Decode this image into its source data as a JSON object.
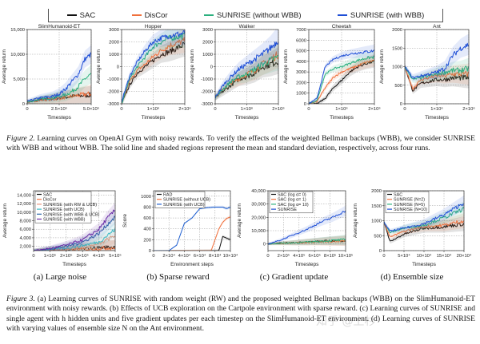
{
  "figure2": {
    "legend": [
      {
        "label": "SAC",
        "color": "#111111"
      },
      {
        "label": "DisCor",
        "color": "#f0703c"
      },
      {
        "label": "SUNRISE (without WBB)",
        "color": "#2bb07e"
      },
      {
        "label": "SUNRISE (with WBB)",
        "color": "#1f4fd6"
      }
    ],
    "caption_label": "Figure 2.",
    "caption_text": " Learning curves on OpenAI Gym with noisy rewards. To verify the effects of the weighted Bellman backups (WBB), we consider SUNRISE with WBB and without WBB. The solid line and shaded regions represent the mean and standard deviation, respectively, across four runs."
  },
  "figure3": {
    "subcaptions": [
      "(a) Large noise",
      "(b) Sparse reward",
      "(c) Gradient update",
      "(d) Ensemble size"
    ],
    "caption_label": "Figure 3.",
    "caption_text": " (a) Learning curves of SUNRISE with random weight (RW) and the proposed weighted Bellman backups (WBB) on the SlimHumanoid-ET environment with noisy rewards. (b) Effects of UCB exploration on the Cartpole environment with sparse reward. (c) Learning curves of SUNRISE and single agent with h hidden units and five gradient updates per each timestep on the SlimHumanoid-ET environment. (d) Learning curves of SUNRISE with varying values of ensemble size N on the Ant environment."
  },
  "watermark": "知乎 @上杉",
  "chart_data": [
    {
      "type": "line",
      "title": "SlimHumanoid-ET",
      "xlabel": "Timesteps",
      "ylabel": "Average return",
      "xlim": [
        0,
        500000
      ],
      "ylim": [
        0,
        15000
      ],
      "xticks": [
        0,
        250000,
        500000
      ],
      "xticklabels": [
        "0",
        "2.5×10⁵",
        "5.0×10⁵"
      ],
      "yticks": [
        0,
        5000,
        10000,
        15000
      ],
      "yticklabels": [
        "0",
        "5,000",
        "10,000",
        "15,000"
      ],
      "grid": true,
      "x": [
        0,
        100000,
        200000,
        250000,
        300000,
        350000,
        400000,
        450000,
        500000
      ],
      "series": [
        {
          "name": "SAC",
          "color": "#111111",
          "values": [
            300,
            800,
            1000,
            1200,
            1300,
            1500,
            1600,
            1700,
            1800
          ]
        },
        {
          "name": "DisCor",
          "color": "#f0703c",
          "values": [
            300,
            700,
            900,
            1100,
            1300,
            1500,
            1700,
            1900,
            2000
          ]
        },
        {
          "name": "SUNRISE (without WBB)",
          "color": "#2bb07e",
          "values": [
            300,
            900,
            1200,
            1500,
            1800,
            2500,
            3500,
            5000,
            6000
          ]
        },
        {
          "name": "SUNRISE (with WBB)",
          "color": "#1f4fd6",
          "values": [
            500,
            1200,
            1500,
            2000,
            3000,
            4500,
            6000,
            9000,
            10000
          ]
        }
      ]
    },
    {
      "type": "line",
      "title": "Hopper",
      "xlabel": "Timesteps",
      "ylabel": "Average return",
      "xlim": [
        0,
        2000000
      ],
      "ylim": [
        -3000,
        3000
      ],
      "xticks": [
        0,
        1000000,
        2000000
      ],
      "xticklabels": [
        "0",
        "1×10⁶",
        "2×10⁶"
      ],
      "yticks": [
        -3000,
        -2000,
        -1000,
        0,
        1000,
        2000,
        3000
      ],
      "yticklabels": [
        "-3000",
        "-2000",
        "-1000",
        "0",
        "1000",
        "2000",
        "3000"
      ],
      "grid": true,
      "x": [
        0,
        250000,
        500000,
        750000,
        1000000,
        1250000,
        1500000,
        1750000,
        2000000
      ],
      "series": [
        {
          "name": "SAC",
          "color": "#111111",
          "values": [
            -3000,
            -1500,
            -500,
            0,
            500,
            1000,
            1200,
            1500,
            1800
          ]
        },
        {
          "name": "DisCor",
          "color": "#f0703c",
          "values": [
            -3000,
            -1200,
            -300,
            200,
            800,
            1300,
            1700,
            1900,
            2100
          ]
        },
        {
          "name": "SUNRISE (without WBB)",
          "color": "#2bb07e",
          "values": [
            -3000,
            -1000,
            0,
            800,
            1600,
            2000,
            2300,
            2400,
            2500
          ]
        },
        {
          "name": "SUNRISE (with WBB)",
          "color": "#1f4fd6",
          "values": [
            -2800,
            -800,
            400,
            1300,
            2000,
            2300,
            2500,
            2600,
            2700
          ]
        }
      ]
    },
    {
      "type": "line",
      "title": "Walker",
      "xlabel": "Timesteps",
      "ylabel": "Average return",
      "xlim": [
        0,
        2000000
      ],
      "ylim": [
        -3000,
        3000
      ],
      "xticks": [
        0,
        1000000,
        2000000
      ],
      "xticklabels": [
        "0",
        "1×10⁶",
        "2×10⁶"
      ],
      "yticks": [
        -3000,
        -2000,
        -1000,
        0,
        1000,
        2000,
        3000
      ],
      "yticklabels": [
        "-3000",
        "-2000",
        "-1000",
        "0",
        "1000",
        "2000",
        "3000"
      ],
      "grid": true,
      "x": [
        0,
        250000,
        500000,
        750000,
        1000000,
        1250000,
        1500000,
        1750000,
        2000000
      ],
      "series": [
        {
          "name": "SAC",
          "color": "#111111",
          "values": [
            -2500,
            -2000,
            -1500,
            -1000,
            -800,
            -500,
            0,
            200,
            500
          ]
        },
        {
          "name": "DisCor",
          "color": "#f0703c",
          "values": [
            -2500,
            -1800,
            -1300,
            -1000,
            -600,
            -300,
            200,
            600,
            1000
          ]
        },
        {
          "name": "SUNRISE (without WBB)",
          "color": "#2bb07e",
          "values": [
            -2500,
            -1800,
            -1200,
            -800,
            -600,
            -200,
            200,
            500,
            800
          ]
        },
        {
          "name": "SUNRISE (with WBB)",
          "color": "#1f4fd6",
          "values": [
            -2500,
            -1500,
            -800,
            -200,
            200,
            600,
            1000,
            1500,
            2200
          ]
        }
      ]
    },
    {
      "type": "line",
      "title": "Cheetah",
      "xlabel": "Timesteps",
      "ylabel": "Average return",
      "xlim": [
        0,
        2000000
      ],
      "ylim": [
        0,
        7000
      ],
      "xticks": [
        0,
        1000000,
        2000000
      ],
      "xticklabels": [
        "0",
        "1×10⁶",
        "2×10⁶"
      ],
      "yticks": [
        0,
        1000,
        2000,
        3000,
        4000,
        5000,
        6000,
        7000
      ],
      "yticklabels": [
        "0",
        "1000",
        "2000",
        "3000",
        "4000",
        "5000",
        "6000",
        "7000"
      ],
      "grid": true,
      "x": [
        0,
        250000,
        500000,
        750000,
        1000000,
        1250000,
        1500000,
        1750000,
        2000000
      ],
      "series": [
        {
          "name": "SAC",
          "color": "#111111",
          "values": [
            0,
            0,
            500,
            1500,
            2200,
            3000,
            3500,
            3800,
            4000
          ]
        },
        {
          "name": "DisCor",
          "color": "#f0703c",
          "values": [
            0,
            200,
            1500,
            2500,
            3000,
            3300,
            3600,
            3900,
            4100
          ]
        },
        {
          "name": "SUNRISE (without WBB)",
          "color": "#2bb07e",
          "values": [
            0,
            300,
            2800,
            3300,
            3500,
            3800,
            4100,
            4300,
            4400
          ]
        },
        {
          "name": "SUNRISE (with WBB)",
          "color": "#1f4fd6",
          "values": [
            0,
            500,
            3500,
            4200,
            4500,
            4700,
            4800,
            4900,
            5000
          ]
        }
      ]
    },
    {
      "type": "line",
      "title": "Ant",
      "xlabel": "Timesteps",
      "ylabel": "Average return",
      "xlim": [
        0,
        2000000
      ],
      "ylim": [
        0,
        2000
      ],
      "xticks": [
        0,
        1000000,
        2000000
      ],
      "xticklabels": [
        "0",
        "1×10⁶",
        "2×10⁶"
      ],
      "yticks": [
        0,
        500,
        1000,
        1500,
        2000
      ],
      "yticklabels": [
        "0",
        "500",
        "1000",
        "1500",
        "2000"
      ],
      "grid": true,
      "x": [
        0,
        250000,
        500000,
        750000,
        1000000,
        1250000,
        1500000,
        1750000,
        2000000
      ],
      "series": [
        {
          "name": "SAC",
          "color": "#111111",
          "values": [
            1000,
            350,
            550,
            600,
            650,
            650,
            700,
            700,
            700
          ]
        },
        {
          "name": "DisCor",
          "color": "#f0703c",
          "values": [
            1000,
            400,
            650,
            700,
            750,
            750,
            800,
            800,
            800
          ]
        },
        {
          "name": "SUNRISE (without WBB)",
          "color": "#2bb07e",
          "values": [
            1000,
            650,
            700,
            750,
            800,
            850,
            900,
            900,
            950
          ]
        },
        {
          "name": "SUNRISE (with WBB)",
          "color": "#1f4fd6",
          "values": [
            1000,
            700,
            750,
            800,
            850,
            950,
            1300,
            1500,
            1600
          ]
        }
      ]
    },
    {
      "type": "line",
      "title": "",
      "xlabel": "Timesteps",
      "ylabel": "Average return",
      "xlim": [
        0,
        500000
      ],
      "ylim": [
        1000,
        15000
      ],
      "xticks": [
        0,
        100000,
        200000,
        300000,
        400000,
        500000
      ],
      "xticklabels": [
        "0",
        "1×10⁵",
        "2×10⁵",
        "3×10⁵",
        "4×10⁵",
        "5×10⁵"
      ],
      "yticks": [
        2000,
        4000,
        6000,
        8000,
        10000,
        12000,
        14000
      ],
      "yticklabels": [
        "2,000",
        "4,000",
        "6,000",
        "8,000",
        "10,000",
        "12,000",
        "14,000"
      ],
      "grid": true,
      "legend": "top-left",
      "x": [
        0,
        100000,
        200000,
        300000,
        400000,
        450000,
        500000
      ],
      "series": [
        {
          "name": "SAC",
          "color": "#111111",
          "values": [
            1000,
            1100,
            1200,
            1400,
            1700,
            1800,
            1800
          ]
        },
        {
          "name": "DisCor",
          "color": "#f0703c",
          "values": [
            1000,
            1100,
            1200,
            1300,
            1500,
            1600,
            1700
          ]
        },
        {
          "name": "SUNRISE (with RW & UCB)",
          "color": "#e8957c",
          "values": [
            1000,
            1200,
            1400,
            1800,
            2500,
            3500,
            4500
          ]
        },
        {
          "name": "SUNRISE (with UCB)",
          "color": "#3cbcc8",
          "values": [
            1000,
            1300,
            1600,
            2200,
            3000,
            4500,
            6000
          ]
        },
        {
          "name": "SUNRISE (with WBB & UCB)",
          "color": "#2a66a8",
          "values": [
            1000,
            1400,
            2000,
            3000,
            5000,
            7000,
            9000
          ]
        },
        {
          "name": "SUNRISE (with WBB)",
          "color": "#6a2ca6",
          "values": [
            1000,
            1500,
            2300,
            3500,
            6000,
            8500,
            10500
          ]
        }
      ]
    },
    {
      "type": "line",
      "title": "",
      "xlabel": "Environment steps",
      "ylabel": "Score",
      "xlim": [
        0,
        100000
      ],
      "ylim": [
        0,
        1100
      ],
      "xticks": [
        0,
        20000,
        40000,
        60000,
        80000,
        100000
      ],
      "xticklabels": [
        "0",
        "2×10⁴",
        "4×10⁴",
        "6×10⁴",
        "8×10⁴",
        "10×10⁴"
      ],
      "yticks": [
        0,
        200,
        400,
        600,
        800,
        1000
      ],
      "yticklabels": [
        "0",
        "200",
        "400",
        "600",
        "800",
        "1000"
      ],
      "grid": true,
      "legend": "top-left",
      "x": [
        0,
        20000,
        30000,
        40000,
        50000,
        60000,
        70000,
        75000,
        80000,
        85000,
        90000,
        95000,
        100000
      ],
      "series": [
        {
          "name": "RAD",
          "color": "#111111",
          "values": [
            0,
            0,
            0,
            0,
            0,
            0,
            0,
            0,
            0,
            0,
            260,
            230,
            200
          ]
        },
        {
          "name": "SUNRISE (without UCB)",
          "color": "#f0703c",
          "values": [
            0,
            0,
            0,
            0,
            0,
            0,
            0,
            0,
            200,
            400,
            520,
            590,
            620
          ]
        },
        {
          "name": "SUNRISE (with UCB)",
          "color": "#1f5fd0",
          "values": [
            0,
            0,
            100,
            500,
            600,
            770,
            790,
            795,
            800,
            800,
            800,
            770,
            800
          ]
        }
      ]
    },
    {
      "type": "line",
      "title": "",
      "xlabel": "Timesteps",
      "ylabel": "Average return",
      "xlim": [
        0,
        1000000
      ],
      "ylim": [
        -5000,
        40000
      ],
      "xticks": [
        0,
        200000,
        400000,
        600000,
        800000,
        1000000
      ],
      "xticklabels": [
        "0",
        "2×10⁵",
        "4×10⁵",
        "6×10⁵",
        "8×10⁵",
        "10×10⁵"
      ],
      "yticks": [
        0,
        10000,
        20000,
        30000,
        40000
      ],
      "yticklabels": [
        "0",
        "10,000",
        "20,000",
        "30,000",
        "40,000"
      ],
      "grid": true,
      "legend": "top-left",
      "x": [
        0,
        166667,
        333333,
        500000,
        666667,
        833333,
        1000000
      ],
      "series": [
        {
          "name": "SAC (log α= 0)",
          "color": "#111111",
          "values": [
            0,
            600,
            1000,
            1500,
            2000,
            2300,
            2600
          ]
        },
        {
          "name": "SAC (log α= 1)",
          "color": "#f0703c",
          "values": [
            0,
            400,
            800,
            1200,
            1600,
            2000,
            2400
          ]
        },
        {
          "name": "SAC (log α= 10)",
          "color": "#2bb07e",
          "values": [
            0,
            500,
            900,
            1400,
            2000,
            2600,
            3200
          ]
        },
        {
          "name": "SUNRISE",
          "color": "#1f4fd6",
          "values": [
            0,
            3000,
            7000,
            11000,
            16000,
            20000,
            25000
          ]
        }
      ]
    },
    {
      "type": "line",
      "title": "",
      "xlabel": "Timesteps",
      "ylabel": "Average return",
      "xlim": [
        0,
        200000
      ],
      "ylim": [
        0,
        2000
      ],
      "xticks": [
        0,
        50000,
        100000,
        150000,
        200000
      ],
      "xticklabels": [
        "0",
        "5×10⁴",
        "10×10⁴",
        "15×10⁴",
        "20×10⁴"
      ],
      "yticks": [
        0,
        500,
        1000,
        1500,
        2000
      ],
      "yticklabels": [
        "0",
        "500",
        "1000",
        "1500",
        "2000"
      ],
      "grid": true,
      "legend": "top-left",
      "x": [
        0,
        15000,
        50000,
        100000,
        150000,
        200000
      ],
      "series": [
        {
          "name": "SAC",
          "color": "#111111",
          "values": [
            950,
            300,
            550,
            750,
            800,
            900
          ]
        },
        {
          "name": "SUNRISE (N=2)",
          "color": "#f0703c",
          "values": [
            950,
            450,
            650,
            800,
            850,
            1000
          ]
        },
        {
          "name": "SUNRISE (N=5)",
          "color": "#2bb07e",
          "values": [
            950,
            600,
            750,
            850,
            1100,
            1400
          ]
        },
        {
          "name": "SUNRISE (N=10)",
          "color": "#1f4fd6",
          "values": [
            950,
            650,
            750,
            900,
            1200,
            1600
          ]
        }
      ]
    }
  ]
}
